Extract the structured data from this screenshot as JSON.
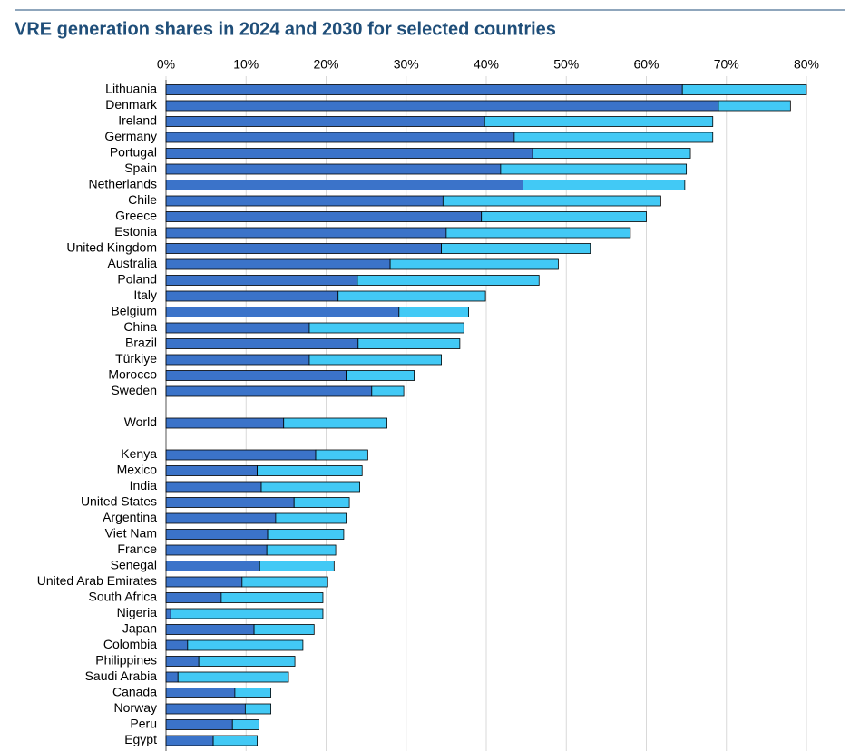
{
  "chart_data": {
    "type": "stacked-barh",
    "title": "VRE generation shares in 2024 and 2030 for selected countries",
    "categories": [
      "Lithuania",
      "Denmark",
      "Ireland",
      "Germany",
      "Portugal",
      "Spain",
      "Netherlands",
      "Chile",
      "Greece",
      "Estonia",
      "United Kingdom",
      "Australia",
      "Poland",
      "Italy",
      "Belgium",
      "China",
      "Brazil",
      "Türkiye",
      "Morocco",
      "Sweden",
      null,
      "World",
      null,
      "Kenya",
      "Mexico",
      "India",
      "United States",
      "Argentina",
      "Viet Nam",
      "France",
      "Senegal",
      "United Arab Emirates",
      "South Africa",
      "Nigeria",
      "Japan",
      "Colombia",
      "Philippines",
      "Saudi Arabia",
      "Canada",
      "Norway",
      "Peru",
      "Egypt"
    ],
    "series": [
      {
        "color": "#3b73c9",
        "values": [
          64.5,
          69,
          39.8,
          43.5,
          45.8,
          41.8,
          44.6,
          34.6,
          39.4,
          35,
          34.4,
          28,
          23.9,
          21.5,
          29.1,
          17.9,
          24,
          17.9,
          22.5,
          25.7,
          null,
          14.7,
          null,
          18.7,
          11.4,
          11.9,
          16,
          13.7,
          12.7,
          12.6,
          11.7,
          9.5,
          6.9,
          0.6,
          11,
          2.7,
          4.1,
          1.5,
          8.6,
          9.9,
          8.3,
          5.9
        ]
      },
      {
        "color": "#42c9f5",
        "values": [
          15.5,
          9,
          28.5,
          24.8,
          19.7,
          23.2,
          20.2,
          27.2,
          20.6,
          23,
          18.6,
          21,
          22.7,
          18.4,
          8.7,
          19.3,
          12.7,
          16.5,
          8.5,
          4,
          null,
          12.9,
          null,
          6.5,
          13.1,
          12.3,
          6.9,
          8.8,
          9.5,
          8.6,
          9.3,
          10.7,
          12.7,
          19,
          7.5,
          14.4,
          12,
          13.8,
          4.5,
          3.2,
          3.3,
          5.5
        ]
      }
    ],
    "xlim": [
      0,
      80
    ],
    "xticks": [
      {
        "value": 0,
        "label": "0%"
      },
      {
        "value": 10,
        "label": "10%"
      },
      {
        "value": 20,
        "label": "20%"
      },
      {
        "value": 30,
        "label": "30%"
      },
      {
        "value": 40,
        "label": "40%"
      },
      {
        "value": 50,
        "label": "50%"
      },
      {
        "value": 60,
        "label": "60%"
      },
      {
        "value": 70,
        "label": "70%"
      },
      {
        "value": 80,
        "label": "80%"
      }
    ],
    "grid": true
  }
}
